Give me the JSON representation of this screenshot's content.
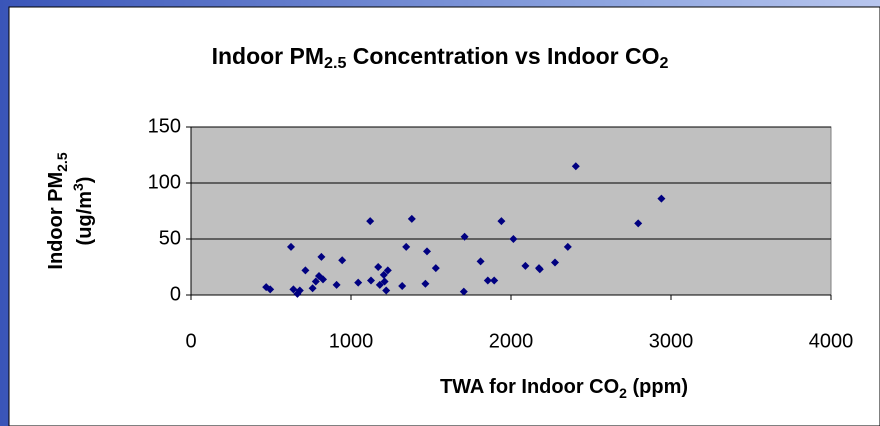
{
  "chart_data": {
    "type": "scatter",
    "title": "Indoor PM2.5 Concentration vs Indoor CO2",
    "xlabel": "TWA for Indoor CO2 (ppm)",
    "ylabel": [
      "Indoor PM2.5",
      "(ug/m3)"
    ],
    "color": "#000080",
    "grid": true,
    "xlim": [
      0,
      4000
    ],
    "xticks": [
      0,
      1000,
      2000,
      3000,
      4000
    ],
    "ylim": [
      0,
      150
    ],
    "yticks": [
      0,
      50,
      100,
      150
    ],
    "x": [
      470,
      495,
      625,
      640,
      665,
      680,
      715,
      760,
      780,
      800,
      815,
      825,
      910,
      945,
      1045,
      1120,
      1125,
      1170,
      1180,
      1205,
      1220,
      1230,
      1210,
      1320,
      1345,
      1380,
      1465,
      1475,
      1530,
      1705,
      1710,
      1810,
      1855,
      1895,
      1940,
      2015,
      2090,
      2175,
      2180,
      2275,
      2355,
      2405,
      2795,
      2940
    ],
    "values": [
      7,
      5,
      43,
      5,
      1,
      4,
      22,
      6,
      12,
      17,
      34,
      14,
      9,
      31,
      11,
      66,
      13,
      25,
      9,
      18,
      4,
      22,
      12,
      8,
      43,
      68,
      10,
      39,
      24,
      3,
      52,
      30,
      13,
      13,
      66,
      50,
      26,
      24,
      23,
      29,
      43,
      115,
      64,
      86
    ]
  }
}
